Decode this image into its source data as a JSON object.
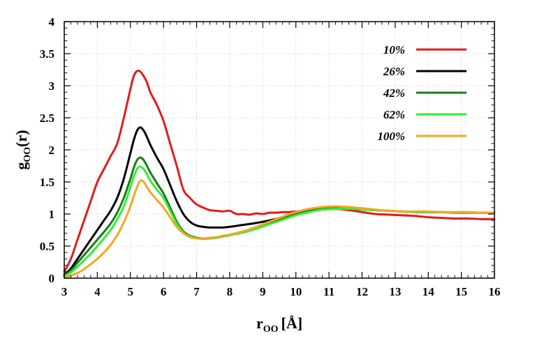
{
  "chart_data": {
    "type": "line",
    "title": "",
    "xlabel": {
      "main": "r",
      "sub": "OO",
      "unit": "[Å]"
    },
    "ylabel": {
      "main": "g",
      "sub": "OO",
      "suffix": "(r)"
    },
    "xlim": [
      3,
      16
    ],
    "ylim": [
      0,
      4
    ],
    "xticks": [
      3,
      4,
      5,
      6,
      7,
      8,
      9,
      10,
      11,
      12,
      13,
      14,
      15,
      16
    ],
    "yticks": [
      0,
      0.5,
      1,
      1.5,
      2,
      2.5,
      3,
      3.5,
      4
    ],
    "ytick_labels": [
      "0",
      "0.5",
      "1",
      "1.5",
      "2",
      "2.5",
      "3",
      "3.5",
      "4"
    ],
    "grid": true,
    "legend_position": "top-right",
    "series": [
      {
        "name": "10%",
        "color": "#e41a1c",
        "x": [
          3.0,
          3.2,
          3.4,
          3.6,
          3.8,
          4.0,
          4.2,
          4.4,
          4.6,
          4.8,
          5.0,
          5.1,
          5.2,
          5.3,
          5.4,
          5.5,
          5.6,
          5.8,
          6.0,
          6.2,
          6.4,
          6.6,
          6.8,
          7.0,
          7.2,
          7.4,
          7.6,
          7.8,
          8.0,
          8.2,
          8.4,
          8.6,
          8.8,
          9.0,
          9.2,
          9.4,
          9.6,
          9.8,
          10.0,
          10.4,
          10.8,
          11.2,
          11.6,
          12.0,
          12.4,
          12.8,
          13.2,
          13.6,
          14.0,
          14.4,
          14.8,
          15.2,
          15.6,
          16.0
        ],
        "y": [
          0.1,
          0.3,
          0.6,
          0.9,
          1.2,
          1.5,
          1.7,
          1.9,
          2.1,
          2.5,
          2.95,
          3.15,
          3.23,
          3.22,
          3.15,
          3.05,
          2.9,
          2.7,
          2.45,
          2.1,
          1.75,
          1.38,
          1.25,
          1.15,
          1.1,
          1.06,
          1.05,
          1.04,
          1.05,
          1.0,
          1.0,
          0.99,
          1.01,
          1.0,
          1.02,
          1.02,
          1.03,
          1.03,
          1.04,
          1.05,
          1.07,
          1.08,
          1.06,
          1.03,
          1.0,
          0.99,
          0.98,
          0.97,
          0.95,
          0.94,
          0.93,
          0.93,
          0.92,
          0.92
        ]
      },
      {
        "name": "26%",
        "color": "#000000",
        "x": [
          3.0,
          3.2,
          3.4,
          3.6,
          3.8,
          4.0,
          4.2,
          4.4,
          4.6,
          4.8,
          5.0,
          5.1,
          5.2,
          5.3,
          5.4,
          5.5,
          5.6,
          5.8,
          6.0,
          6.2,
          6.4,
          6.6,
          6.8,
          7.0,
          7.2,
          7.4,
          7.6,
          7.8,
          8.0,
          8.4,
          8.8,
          9.2,
          9.6,
          10.0,
          10.4,
          10.8,
          11.2,
          11.6,
          12.0,
          12.4,
          12.8,
          13.2,
          13.6,
          14.0,
          14.4,
          14.8,
          15.2,
          15.6,
          16.0
        ],
        "y": [
          0.05,
          0.15,
          0.3,
          0.45,
          0.6,
          0.75,
          0.9,
          1.05,
          1.25,
          1.55,
          1.95,
          2.15,
          2.3,
          2.35,
          2.3,
          2.2,
          2.08,
          1.88,
          1.7,
          1.45,
          1.2,
          1.0,
          0.88,
          0.82,
          0.8,
          0.79,
          0.79,
          0.79,
          0.8,
          0.83,
          0.86,
          0.9,
          0.95,
          1.0,
          1.04,
          1.07,
          1.08,
          1.08,
          1.07,
          1.06,
          1.05,
          1.04,
          1.03,
          1.03,
          1.03,
          1.02,
          1.02,
          1.02,
          1.02
        ]
      },
      {
        "name": "42%",
        "color": "#1a7a1a",
        "x": [
          3.0,
          3.2,
          3.4,
          3.6,
          3.8,
          4.0,
          4.2,
          4.4,
          4.6,
          4.8,
          5.0,
          5.1,
          5.2,
          5.3,
          5.4,
          5.5,
          5.6,
          5.8,
          6.0,
          6.2,
          6.4,
          6.6,
          6.8,
          7.0,
          7.2,
          7.4,
          7.6,
          7.8,
          8.0,
          8.4,
          8.8,
          9.2,
          9.6,
          10.0,
          10.4,
          10.8,
          11.2,
          11.6,
          12.0,
          12.4,
          12.8,
          13.2,
          13.6,
          14.0,
          14.4,
          14.8,
          15.2,
          15.6,
          16.0
        ],
        "y": [
          0.04,
          0.12,
          0.24,
          0.36,
          0.48,
          0.6,
          0.72,
          0.85,
          1.02,
          1.25,
          1.55,
          1.72,
          1.84,
          1.88,
          1.84,
          1.75,
          1.65,
          1.48,
          1.32,
          1.1,
          0.88,
          0.73,
          0.66,
          0.63,
          0.62,
          0.62,
          0.63,
          0.65,
          0.67,
          0.72,
          0.78,
          0.85,
          0.93,
          1.0,
          1.05,
          1.08,
          1.09,
          1.08,
          1.07,
          1.06,
          1.05,
          1.04,
          1.03,
          1.03,
          1.03,
          1.02,
          1.02,
          1.02,
          1.02
        ]
      },
      {
        "name": "62%",
        "color": "#33ee33",
        "x": [
          3.0,
          3.2,
          3.4,
          3.6,
          3.8,
          4.0,
          4.2,
          4.4,
          4.6,
          4.8,
          5.0,
          5.1,
          5.2,
          5.3,
          5.4,
          5.5,
          5.6,
          5.8,
          6.0,
          6.2,
          6.4,
          6.6,
          6.8,
          7.0,
          7.2,
          7.4,
          7.6,
          7.8,
          8.0,
          8.4,
          8.8,
          9.2,
          9.6,
          10.0,
          10.4,
          10.8,
          11.2,
          11.6,
          12.0,
          12.4,
          12.8,
          13.2,
          13.6,
          14.0,
          14.4,
          14.8,
          15.2,
          15.6,
          16.0
        ],
        "y": [
          0.03,
          0.09,
          0.18,
          0.28,
          0.38,
          0.5,
          0.62,
          0.75,
          0.92,
          1.12,
          1.42,
          1.58,
          1.7,
          1.74,
          1.7,
          1.62,
          1.52,
          1.38,
          1.25,
          1.05,
          0.85,
          0.71,
          0.65,
          0.62,
          0.61,
          0.62,
          0.63,
          0.65,
          0.67,
          0.71,
          0.77,
          0.84,
          0.91,
          0.98,
          1.03,
          1.07,
          1.08,
          1.08,
          1.07,
          1.06,
          1.05,
          1.04,
          1.03,
          1.03,
          1.03,
          1.02,
          1.02,
          1.02,
          1.02
        ]
      },
      {
        "name": "100%",
        "color": "#f5a623",
        "x": [
          3.0,
          3.2,
          3.4,
          3.6,
          3.8,
          4.0,
          4.2,
          4.4,
          4.6,
          4.8,
          5.0,
          5.1,
          5.2,
          5.3,
          5.4,
          5.5,
          5.6,
          5.8,
          6.0,
          6.2,
          6.4,
          6.6,
          6.8,
          7.0,
          7.2,
          7.4,
          7.6,
          7.8,
          8.0,
          8.4,
          8.8,
          9.2,
          9.6,
          10.0,
          10.4,
          10.8,
          11.2,
          11.6,
          12.0,
          12.4,
          12.8,
          13.2,
          13.6,
          14.0,
          14.4,
          14.8,
          15.2,
          15.6,
          16.0
        ],
        "y": [
          0.01,
          0.04,
          0.08,
          0.14,
          0.22,
          0.3,
          0.4,
          0.52,
          0.67,
          0.87,
          1.12,
          1.28,
          1.42,
          1.52,
          1.5,
          1.42,
          1.34,
          1.22,
          1.1,
          0.95,
          0.8,
          0.7,
          0.64,
          0.62,
          0.62,
          0.63,
          0.64,
          0.66,
          0.68,
          0.73,
          0.8,
          0.88,
          0.96,
          1.03,
          1.08,
          1.11,
          1.12,
          1.11,
          1.09,
          1.07,
          1.05,
          1.04,
          1.04,
          1.04,
          1.03,
          1.03,
          1.03,
          1.02,
          1.02
        ]
      }
    ]
  }
}
